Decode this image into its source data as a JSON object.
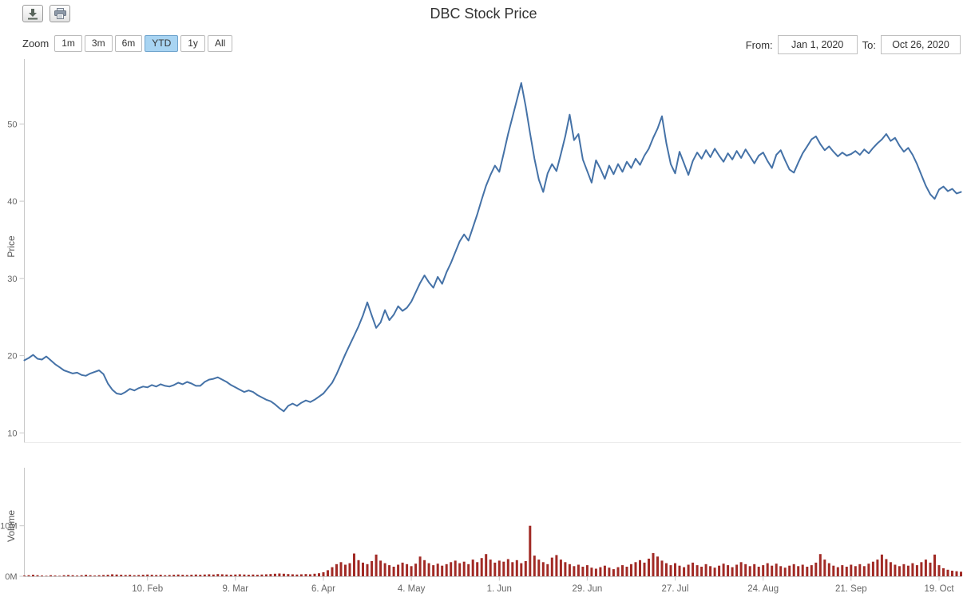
{
  "title": "DBC Stock Price",
  "toolbar": {
    "icons": {
      "download": "download-icon",
      "print": "print-icon"
    }
  },
  "range_selector": {
    "zoom_label": "Zoom",
    "buttons": [
      {
        "label": "1m",
        "selected": false
      },
      {
        "label": "3m",
        "selected": false
      },
      {
        "label": "6m",
        "selected": false
      },
      {
        "label": "YTD",
        "selected": true
      },
      {
        "label": "1y",
        "selected": false
      },
      {
        "label": "All",
        "selected": false
      }
    ]
  },
  "date_range": {
    "from_label": "From:",
    "from_value": "Jan 1, 2020",
    "to_label": "To:",
    "to_value": "Oct 26, 2020"
  },
  "colors": {
    "price_line": "#4572A7",
    "volume_bar": "#A12A25",
    "selected_range_bg": "#A8D4F2",
    "axis_line": "#C8C8C8",
    "tick_text": "#666666",
    "title_text": "#333333"
  },
  "x_axis": {
    "tick_labels": [
      "10. Feb",
      "9. Mar",
      "6. Apr",
      "4. May",
      "1. Jun",
      "29. Jun",
      "27. Jul",
      "24. Aug",
      "21. Sep",
      "19. Oct"
    ],
    "tick_indices": [
      28,
      48,
      68,
      88,
      108,
      128,
      148,
      168,
      188,
      208
    ]
  },
  "chart_data": [
    {
      "type": "line",
      "title": "DBC Stock Price",
      "name": "Price",
      "ylabel": "Price",
      "xlabel": "",
      "color": "#4572A7",
      "grid": false,
      "legend": "none",
      "ylim": [
        8.8,
        58.4
      ],
      "yticks": [
        10,
        20,
        30,
        40,
        50
      ],
      "x_range": [
        "Jan 1, 2020",
        "Oct 26, 2020"
      ],
      "values": [
        19.4,
        19.7,
        20.1,
        19.6,
        19.5,
        19.9,
        19.4,
        18.9,
        18.5,
        18.1,
        17.9,
        17.7,
        17.8,
        17.5,
        17.4,
        17.7,
        17.9,
        18.1,
        17.6,
        16.4,
        15.6,
        15.1,
        15.0,
        15.3,
        15.7,
        15.5,
        15.8,
        16.0,
        15.9,
        16.2,
        16.0,
        16.3,
        16.1,
        16.0,
        16.2,
        16.5,
        16.3,
        16.6,
        16.4,
        16.1,
        16.1,
        16.6,
        16.9,
        17.0,
        17.2,
        16.9,
        16.6,
        16.2,
        15.9,
        15.6,
        15.3,
        15.5,
        15.3,
        14.9,
        14.6,
        14.3,
        14.1,
        13.7,
        13.2,
        12.8,
        13.5,
        13.8,
        13.5,
        13.9,
        14.2,
        14.0,
        14.3,
        14.7,
        15.1,
        15.8,
        16.5,
        17.6,
        18.9,
        20.2,
        21.4,
        22.6,
        23.8,
        25.2,
        26.9,
        25.2,
        23.6,
        24.3,
        25.9,
        24.6,
        25.3,
        26.4,
        25.8,
        26.2,
        27.0,
        28.2,
        29.4,
        30.4,
        29.5,
        28.8,
        30.2,
        29.3,
        30.8,
        32.0,
        33.4,
        34.8,
        35.7,
        34.9,
        36.6,
        38.3,
        40.2,
        42.0,
        43.4,
        44.6,
        43.8,
        46.2,
        48.7,
        50.9,
        53.1,
        55.3,
        52.3,
        48.8,
        45.5,
        42.8,
        41.2,
        43.6,
        44.8,
        43.9,
        46.1,
        48.4,
        51.2,
        47.9,
        48.7,
        45.4,
        43.9,
        42.4,
        45.3,
        44.2,
        42.9,
        44.6,
        43.5,
        44.8,
        43.8,
        45.1,
        44.3,
        45.5,
        44.7,
        45.9,
        46.8,
        48.2,
        49.4,
        51.0,
        47.5,
        44.8,
        43.6,
        46.4,
        44.9,
        43.4,
        45.2,
        46.3,
        45.5,
        46.6,
        45.7,
        46.8,
        45.9,
        45.1,
        46.2,
        45.4,
        46.5,
        45.6,
        46.7,
        45.8,
        44.9,
        45.9,
        46.3,
        45.2,
        44.3,
        46.0,
        46.6,
        45.3,
        44.1,
        43.7,
        45.0,
        46.2,
        47.1,
        48.0,
        48.4,
        47.4,
        46.6,
        47.1,
        46.4,
        45.8,
        46.3,
        45.9,
        46.1,
        46.5,
        46.0,
        46.7,
        46.2,
        46.9,
        47.5,
        48.0,
        48.7,
        47.8,
        48.2,
        47.2,
        46.4,
        46.9,
        46.0,
        44.8,
        43.4,
        42.0,
        40.9,
        40.3,
        41.5,
        41.9,
        41.3,
        41.6,
        41.0,
        41.2
      ]
    },
    {
      "type": "bar",
      "name": "Volume",
      "ylabel": "Volume",
      "xlabel": "",
      "color": "#A12A25",
      "grid": false,
      "legend": "none",
      "ylim": [
        0,
        21.5
      ],
      "yticks": [
        0,
        10
      ],
      "ytick_labels": [
        "0M",
        "10M"
      ],
      "unit": "millions of shares",
      "values": [
        0.15,
        0.2,
        0.3,
        0.2,
        0.15,
        0.1,
        0.2,
        0.15,
        0.1,
        0.2,
        0.25,
        0.2,
        0.15,
        0.2,
        0.3,
        0.2,
        0.15,
        0.2,
        0.25,
        0.3,
        0.4,
        0.35,
        0.3,
        0.25,
        0.3,
        0.2,
        0.25,
        0.3,
        0.35,
        0.3,
        0.25,
        0.3,
        0.2,
        0.25,
        0.3,
        0.35,
        0.3,
        0.25,
        0.3,
        0.35,
        0.3,
        0.35,
        0.4,
        0.35,
        0.45,
        0.4,
        0.35,
        0.3,
        0.35,
        0.4,
        0.35,
        0.3,
        0.35,
        0.3,
        0.35,
        0.4,
        0.45,
        0.5,
        0.55,
        0.5,
        0.45,
        0.4,
        0.35,
        0.4,
        0.45,
        0.4,
        0.5,
        0.6,
        0.8,
        1.2,
        1.8,
        2.4,
        2.8,
        2.3,
        2.6,
        4.5,
        3.2,
        2.7,
        2.4,
        3.0,
        4.3,
        3.1,
        2.6,
        2.2,
        1.9,
        2.3,
        2.7,
        2.4,
        2.0,
        2.5,
        3.9,
        3.2,
        2.6,
        2.2,
        2.5,
        2.1,
        2.4,
        2.8,
        3.1,
        2.6,
        2.9,
        2.4,
        3.3,
        2.8,
        3.6,
        4.4,
        3.3,
        2.7,
        3.1,
        2.9,
        3.4,
        2.8,
        3.2,
        2.6,
        3.0,
        10.0,
        4.1,
        3.3,
        2.8,
        2.4,
        3.7,
        4.2,
        3.3,
        2.8,
        2.4,
        2.0,
        2.3,
        1.9,
        2.2,
        1.7,
        1.5,
        1.8,
        2.1,
        1.7,
        1.4,
        1.8,
        2.2,
        1.9,
        2.4,
        2.8,
        3.2,
        2.7,
        3.5,
        4.6,
        3.9,
        3.1,
        2.6,
        2.2,
        2.6,
        2.1,
        1.8,
        2.3,
        2.7,
        2.2,
        1.9,
        2.4,
        2.0,
        1.7,
        2.1,
        2.5,
        2.2,
        1.8,
        2.3,
        2.8,
        2.4,
        2.0,
        2.4,
        1.9,
        2.2,
        2.6,
        2.1,
        2.5,
        2.0,
        1.7,
        2.1,
        2.4,
        2.0,
        2.3,
        1.9,
        2.2,
        2.7,
        4.4,
        3.3,
        2.6,
        2.1,
        1.8,
        2.2,
        1.9,
        2.3,
        2.0,
        2.4,
        2.0,
        2.5,
        2.9,
        3.3,
        4.3,
        3.4,
        2.8,
        2.3,
        2.0,
        2.4,
        2.1,
        2.6,
        2.2,
        2.8,
        3.3,
        2.7,
        4.3,
        2.2,
        1.6,
        1.3,
        1.1,
        1.0,
        0.9
      ]
    }
  ]
}
